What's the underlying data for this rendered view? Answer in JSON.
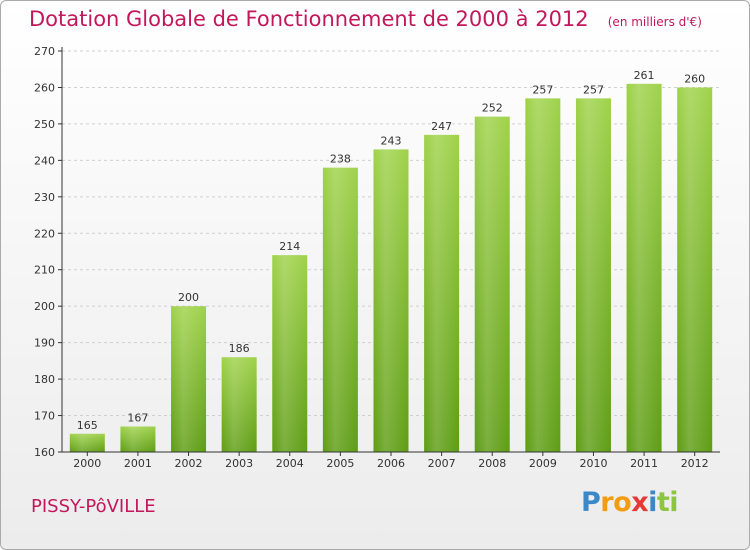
{
  "colors": {
    "title": "#c2185b",
    "bar_top": "#9fd24a",
    "bar_bottom": "#5e9d14",
    "axis": "#333333",
    "grid": "#cfcfcf"
  },
  "city": "PISSY-PôVILLE",
  "logo": {
    "letters": [
      {
        "char": "P",
        "color": "#3a88c8"
      },
      {
        "char": "r",
        "color": "#f39c12"
      },
      {
        "char": "o",
        "color": "#f39c12"
      },
      {
        "char": "x",
        "color": "#e53935"
      },
      {
        "char": "i",
        "color": "#3a88c8"
      },
      {
        "char": "t",
        "color": "#8cc63f"
      },
      {
        "char": "i",
        "color": "#8cc63f"
      }
    ]
  },
  "chart_data": {
    "type": "bar",
    "title": "Dotation Globale de Fonctionnement de 2000 à 2012",
    "subtitle": "(en milliers d'€)",
    "categories": [
      "2000",
      "2001",
      "2002",
      "2003",
      "2004",
      "2005",
      "2006",
      "2007",
      "2008",
      "2009",
      "2010",
      "2011",
      "2012"
    ],
    "values": [
      165,
      167,
      200,
      186,
      214,
      238,
      243,
      247,
      252,
      257,
      257,
      261,
      260
    ],
    "ylim": [
      160,
      270
    ],
    "yticks": [
      160,
      170,
      180,
      190,
      200,
      210,
      220,
      230,
      240,
      250,
      260,
      270
    ],
    "grid": true,
    "legend": "none"
  }
}
